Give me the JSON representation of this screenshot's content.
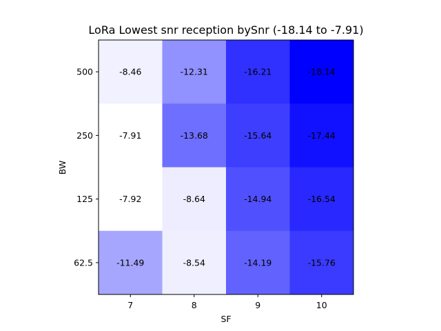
{
  "chart_data": {
    "type": "heatmap",
    "title": "LoRa Lowest snr reception bySnr (-18.14 to -7.91)",
    "xlabel": "SF",
    "ylabel": "BW",
    "x_categories": [
      "7",
      "8",
      "9",
      "10"
    ],
    "y_categories": [
      "500",
      "250",
      "125",
      "62.5"
    ],
    "values": [
      [
        -8.46,
        -12.31,
        -16.21,
        -18.14
      ],
      [
        -7.91,
        -13.68,
        -15.64,
        -17.44
      ],
      [
        -7.92,
        -8.64,
        -14.94,
        -16.54
      ],
      [
        -11.49,
        -8.54,
        -14.19,
        -15.76
      ]
    ],
    "labels": [
      [
        "-8.46",
        "-12.31",
        "-16.21",
        "-18.14"
      ],
      [
        "-7.91",
        "-13.68",
        "-15.64",
        "-17.44"
      ],
      [
        "-7.92",
        "-8.64",
        "-14.94",
        "-16.54"
      ],
      [
        "-11.49",
        "-8.54",
        "-14.19",
        "-15.76"
      ]
    ],
    "value_range": [
      -18.14,
      -7.91
    ],
    "colormap": {
      "low_color": "#0000ff",
      "high_color": "#ffffff"
    },
    "grid": false,
    "legend": "none"
  }
}
